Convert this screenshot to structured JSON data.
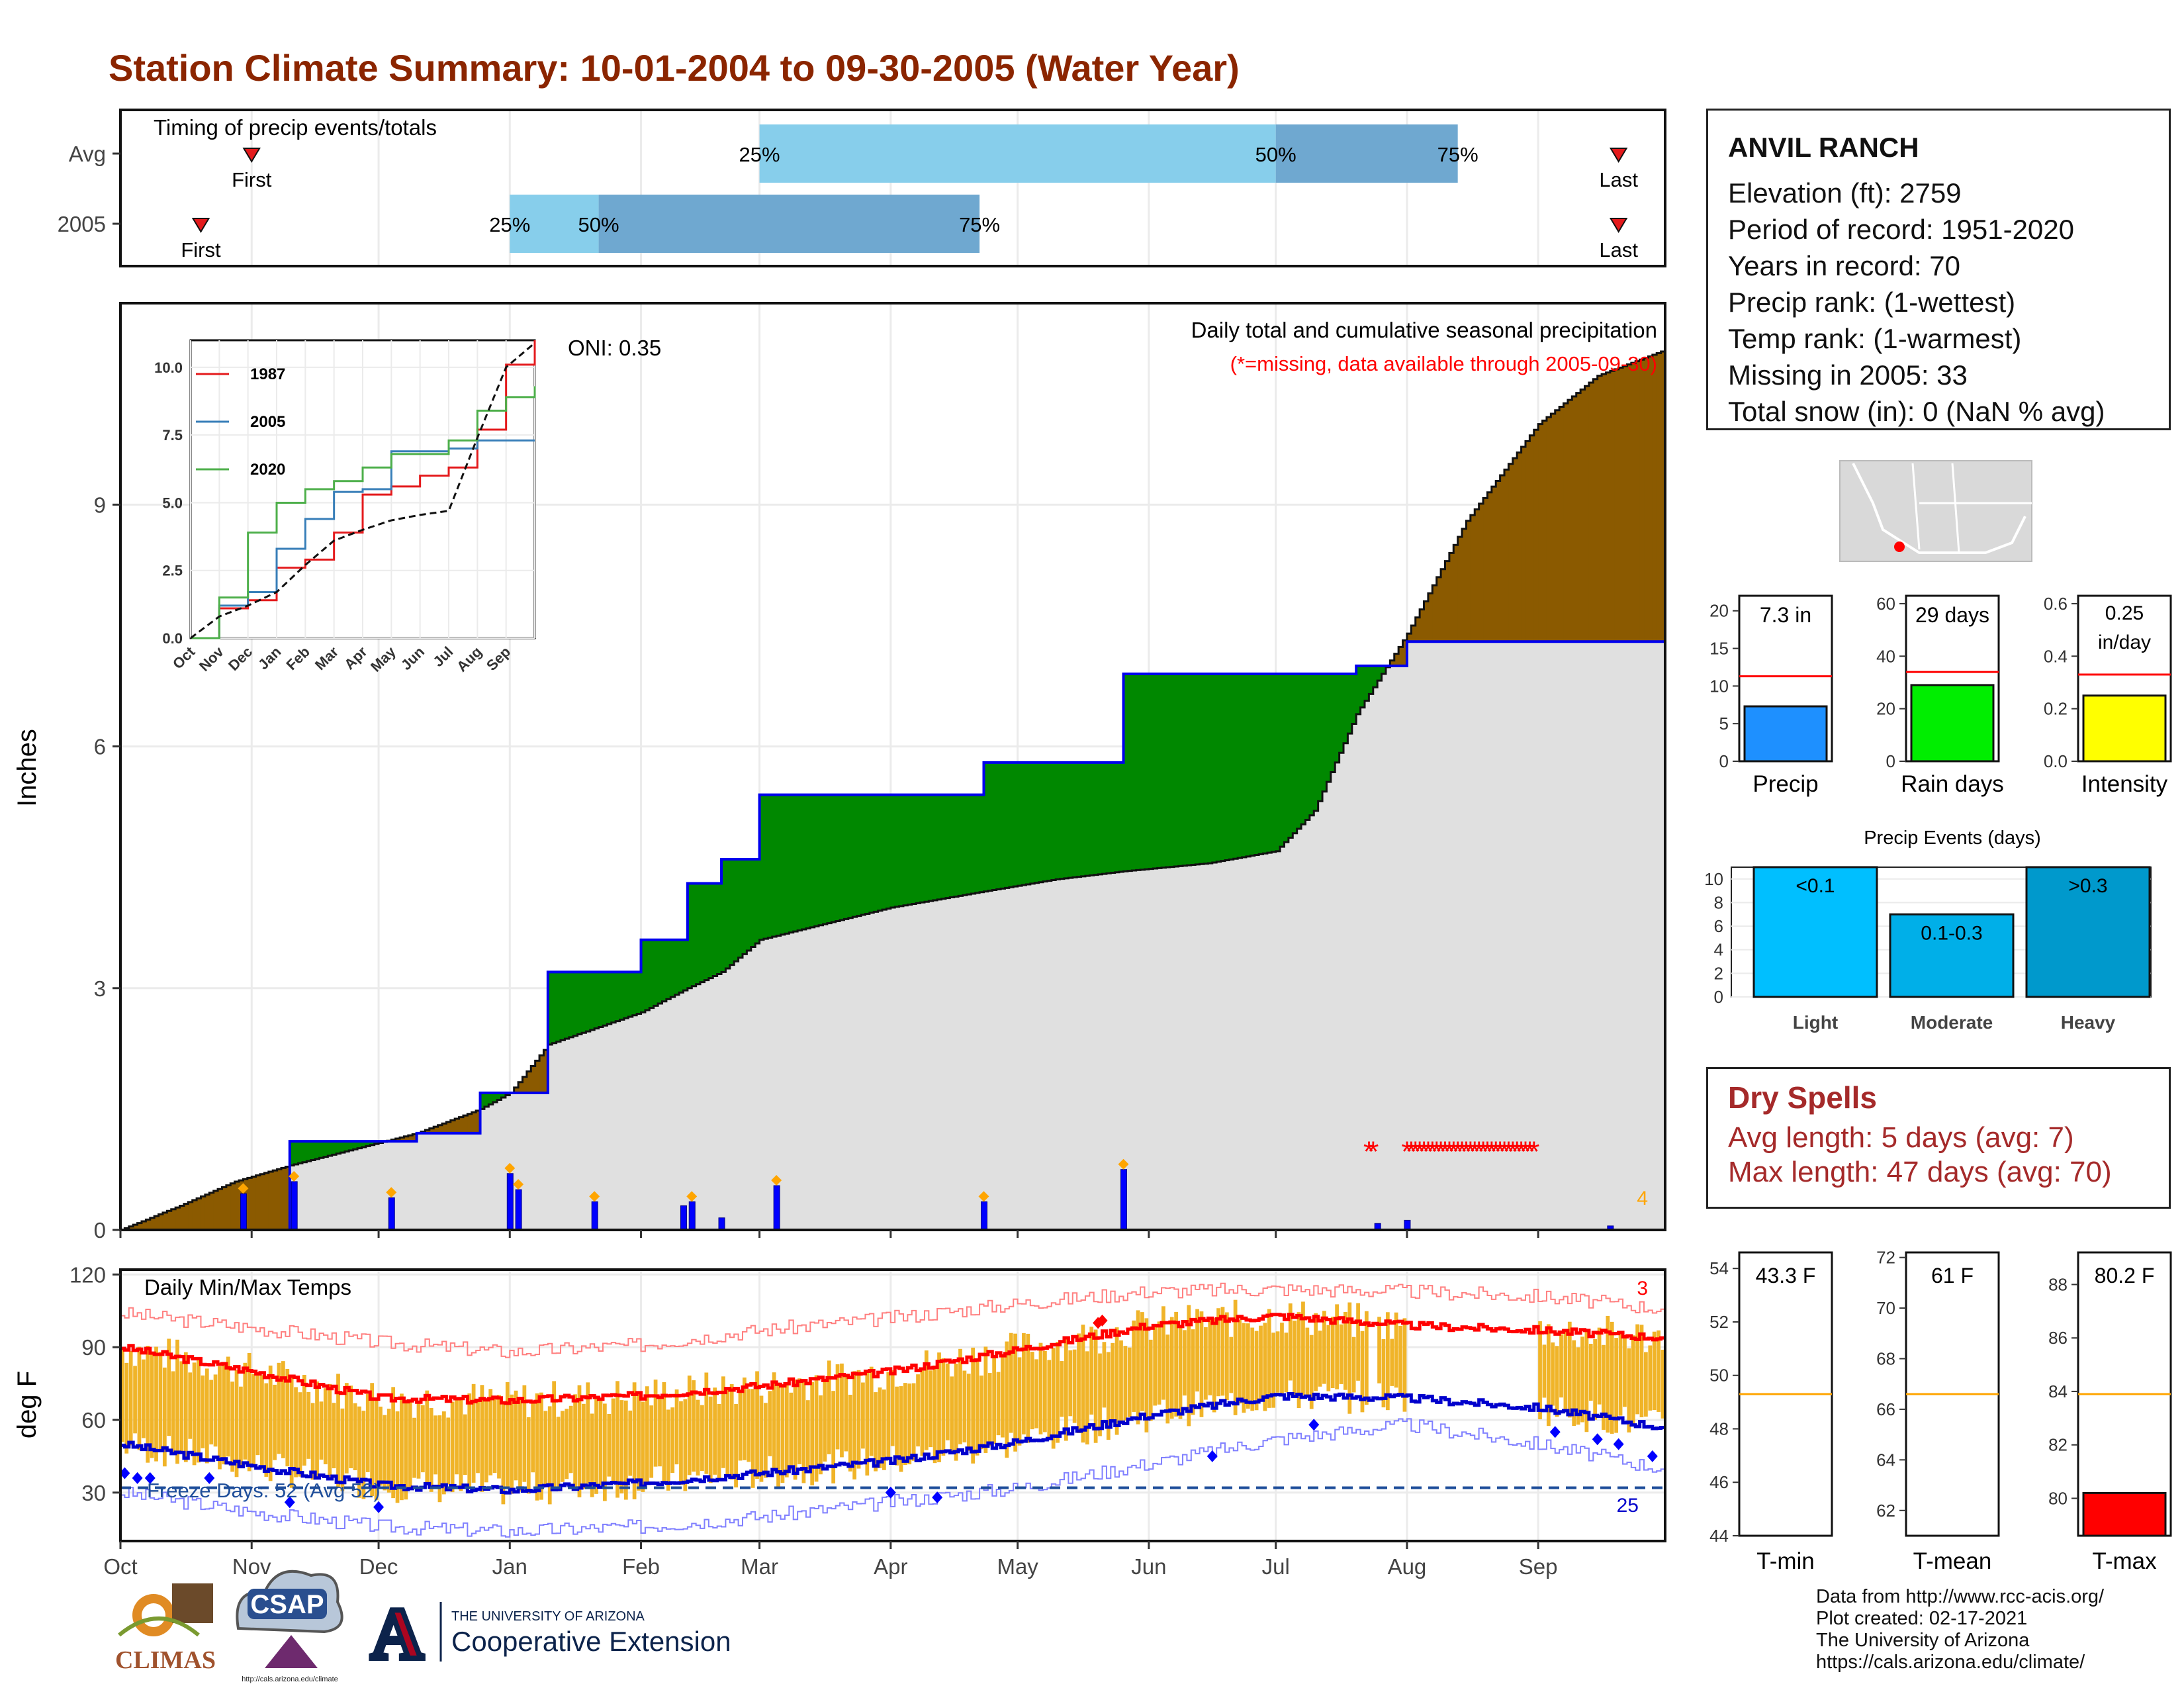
{
  "title": "Station Climate Summary: 10-01-2004 to 09-30-2005 (Water Year)",
  "timing": {
    "label": "Timing of precip events/totals",
    "rows": [
      {
        "name": "Avg",
        "first": "Nov 1",
        "last": "Sep 20",
        "p25": "Mar 1",
        "p50": "Jul 1",
        "p75": "Aug 13"
      },
      {
        "name": "2005",
        "first": "Oct 20",
        "last": "Sep 20",
        "p25": "Jan 1",
        "p50": "Jan 22",
        "p75": "Apr 22"
      }
    ],
    "first_label": "First",
    "last_label": "Last",
    "p25_label": "25%",
    "p50_label": "50%",
    "p75_label": "75%"
  },
  "precip_panel": {
    "ylabel": "Inches",
    "header": "Daily total and cumulative seasonal precipitation",
    "missing_note": "(*=missing, data available through 2005-09-30)",
    "oni": "ONI: 0.35",
    "corner_count": "4",
    "yticks": [
      "0",
      "3",
      "6",
      "9"
    ]
  },
  "inset": {
    "yticks": [
      "0.0",
      "2.5",
      "5.0",
      "7.5",
      "10.0"
    ],
    "xticks": [
      "Oct",
      "Nov",
      "Dec",
      "Jan",
      "Feb",
      "Mar",
      "Apr",
      "May",
      "Jun",
      "Jul",
      "Aug",
      "Sep"
    ],
    "legend": [
      {
        "name": "1987",
        "color": "#e41a1c"
      },
      {
        "name": "2005",
        "color": "#377eb8"
      },
      {
        "name": "2020",
        "color": "#4daf4a"
      }
    ]
  },
  "temp_panel": {
    "ylabel": "deg F",
    "header": "Daily Min/Max Temps",
    "freeze": "Freeze Days: 52 (Avg 52)",
    "count_hi": "3",
    "count_lo": "25",
    "yticks": [
      "30",
      "60",
      "90",
      "120"
    ],
    "months": [
      "Oct",
      "Nov",
      "Dec",
      "Jan",
      "Feb",
      "Mar",
      "Apr",
      "May",
      "Jun",
      "Jul",
      "Aug",
      "Sep"
    ]
  },
  "station": {
    "name": "ANVIL RANCH",
    "lines": [
      "Elevation (ft): 2759",
      "Period of record: 1951-2020",
      "Years in record: 70",
      "Precip rank:  (1-wettest)",
      "Temp rank:  (1-warmest)",
      "Missing in 2005: 33",
      "Total snow (in): 0 (NaN % avg)"
    ]
  },
  "summary_bars": [
    {
      "label": "Precip",
      "value_text": "7.3 in",
      "value": 7.3,
      "avg": 11.3,
      "ymax": 22,
      "ticks": [
        "0",
        "5",
        "10",
        "15",
        "20"
      ],
      "color": "#1e90ff"
    },
    {
      "label": "Rain days",
      "value_text": "29 days",
      "value": 29,
      "avg": 34,
      "ymax": 63,
      "ticks": [
        "0",
        "20",
        "40",
        "60"
      ],
      "color": "#00ee00"
    },
    {
      "label": "Intensity",
      "value_text": "0.25 in/day",
      "value": 0.25,
      "avg": 0.33,
      "ymax": 0.63,
      "ticks": [
        "0.0",
        "0.2",
        "0.4",
        "0.6"
      ],
      "color": "#ffff00"
    }
  ],
  "events": {
    "title": "Precip Events (days)",
    "ticks": [
      "0",
      "2",
      "4",
      "6",
      "8",
      "10"
    ],
    "bars": [
      {
        "label": "Light",
        "tag": "<0.1",
        "value": 11,
        "color": "#00bfff"
      },
      {
        "label": "Moderate",
        "tag": "0.1-0.3",
        "value": 7,
        "color": "#00afe8"
      },
      {
        "label": "Heavy",
        "tag": ">0.3",
        "value": 11,
        "color": "#0099cc"
      }
    ]
  },
  "dry_spells": {
    "title": "Dry Spells",
    "avg": "Avg length: 5 days (avg: 7)",
    "max": "Max length: 47 days (avg: 70)"
  },
  "temp_bars": [
    {
      "label": "T-min",
      "value_text": "43.3 F",
      "value": 43.3,
      "avg": 49.3,
      "ymin": 44,
      "ymax": 54.6,
      "ticks": [
        "44",
        "46",
        "48",
        "50",
        "52",
        "54"
      ],
      "color": "#ff0000"
    },
    {
      "label": "T-mean",
      "value_text": "61 F",
      "value": 61,
      "avg": 66.6,
      "ymin": 61,
      "ymax": 72.2,
      "ticks": [
        "62",
        "64",
        "66",
        "68",
        "70",
        "72"
      ],
      "color": "#ff0000"
    },
    {
      "label": "T-max",
      "value_text": "80.2 F",
      "value": 80.2,
      "avg": 83.9,
      "ymin": 78.6,
      "ymax": 89.2,
      "ticks": [
        "80",
        "82",
        "84",
        "86",
        "88"
      ],
      "color": "#ff0000"
    }
  ],
  "footer": [
    "Data from http://www.rcc-acis.org/",
    "Plot created: 02-17-2021",
    "The University of Arizona",
    "https://cals.arizona.edu/climate/"
  ],
  "logos": {
    "climas": "CLIMAS",
    "csap": "CSAP",
    "csap_url": "http://cals.arizona.edu/climate",
    "ua_line1": "THE UNIVERSITY OF ARIZONA",
    "ua_line2": "Cooperative Extension",
    "ua_mark": "A"
  },
  "chart_data": [
    {
      "type": "line",
      "title": "Daily total and cumulative seasonal precipitation",
      "ylabel": "Inches",
      "ylim": [
        0,
        11.5
      ],
      "x": [
        "Oct 1",
        "Oct 15",
        "Oct 28",
        "Nov 10",
        "Nov 25",
        "Dec 10",
        "Dec 25",
        "Jan 1",
        "Jan 10",
        "Feb 1",
        "Feb 12",
        "Feb 20",
        "Mar 1",
        "Apr 1",
        "Apr 23",
        "May 10",
        "May 26",
        "Jun 15",
        "Jul 1",
        "Jul 10",
        "Jul 20",
        "Aug 1",
        "Aug 15",
        "Sep 1",
        "Sep 15",
        "Sep 30"
      ],
      "series": [
        {
          "name": "2005",
          "values": [
            0,
            0,
            0,
            1.1,
            1.1,
            1.2,
            1.7,
            1.7,
            3.2,
            3.6,
            4.3,
            4.6,
            5.4,
            5.4,
            5.8,
            5.8,
            6.9,
            6.9,
            6.9,
            6.9,
            7.0,
            7.3,
            7.3,
            7.3,
            7.3,
            7.3
          ]
        },
        {
          "name": "Avg",
          "values": [
            0,
            0.3,
            0.6,
            0.8,
            1.0,
            1.2,
            1.5,
            1.7,
            2.3,
            2.7,
            3.0,
            3.2,
            3.6,
            4.0,
            4.2,
            4.35,
            4.45,
            4.55,
            4.7,
            5.2,
            6.4,
            7.4,
            8.8,
            10.0,
            10.6,
            10.9
          ]
        }
      ],
      "daily_precip": [
        {
          "x": "Oct 30",
          "y": 0.45
        },
        {
          "x": "Nov 11",
          "y": 0.6
        },
        {
          "x": "Dec 4",
          "y": 0.4
        },
        {
          "x": "Jan 1",
          "y": 0.7
        },
        {
          "x": "Jan 3",
          "y": 0.5
        },
        {
          "x": "Jan 21",
          "y": 0.35
        },
        {
          "x": "Feb 11",
          "y": 0.3
        },
        {
          "x": "Feb 13",
          "y": 0.35
        },
        {
          "x": "Feb 20",
          "y": 0.15
        },
        {
          "x": "Mar 5",
          "y": 0.55
        },
        {
          "x": "Apr 23",
          "y": 0.35
        },
        {
          "x": "May 26",
          "y": 0.75
        },
        {
          "x": "Jul 25",
          "y": 0.08
        },
        {
          "x": "Aug 1",
          "y": 0.12
        },
        {
          "x": "Sep 18",
          "y": 0.05
        }
      ],
      "missing_days": [
        "Jul 23",
        "Jul 24",
        "Aug 1 - Aug 31"
      ],
      "oni": 0.35
    },
    {
      "type": "line",
      "title": "Daily Min/Max Temps",
      "ylabel": "deg F",
      "ylim": [
        10,
        122
      ],
      "x": [
        "Oct 1",
        "Nov 1",
        "Dec 1",
        "Jan 1",
        "Feb 1",
        "Mar 1",
        "Apr 1",
        "May 1",
        "Jun 1",
        "Jul 1",
        "Aug 1",
        "Sep 1",
        "Sep 30"
      ],
      "series": [
        {
          "name": "Avg max",
          "values": [
            90,
            80,
            69,
            68,
            70,
            74,
            80,
            89,
            99,
            103,
            99,
            97,
            94
          ]
        },
        {
          "name": "Avg min",
          "values": [
            50,
            41,
            33,
            31,
            34,
            38,
            43,
            51,
            62,
            70,
            69,
            65,
            57
          ]
        },
        {
          "name": "Record max",
          "values": [
            104,
            98,
            92,
            88,
            91,
            97,
            102,
            108,
            113,
            114,
            113,
            111,
            106
          ]
        },
        {
          "name": "Record min",
          "values": [
            30,
            22,
            16,
            14,
            16,
            20,
            26,
            32,
            42,
            52,
            58,
            50,
            40
          ]
        }
      ],
      "freeze_line": 32,
      "freeze_days": 52,
      "freeze_days_avg": 52
    },
    {
      "type": "line",
      "title": "",
      "xlabel": "",
      "ylim": [
        0,
        11
      ],
      "x": [
        "Oct",
        "Nov",
        "Dec",
        "Jan",
        "Feb",
        "Mar",
        "Apr",
        "May",
        "Jun",
        "Jul",
        "Aug",
        "Sep",
        "Oct"
      ],
      "series": [
        {
          "name": "1987",
          "values": [
            0,
            1.1,
            1.4,
            2.6,
            2.9,
            3.9,
            5.3,
            5.6,
            6.0,
            6.3,
            7.7,
            10.1,
            11.0
          ]
        },
        {
          "name": "2005",
          "values": [
            0,
            1.2,
            1.7,
            3.3,
            4.4,
            5.4,
            5.5,
            6.9,
            6.9,
            7.0,
            7.3,
            7.3,
            7.3
          ]
        },
        {
          "name": "2020",
          "values": [
            0,
            1.5,
            3.9,
            5.0,
            5.5,
            5.8,
            6.3,
            6.8,
            6.8,
            7.3,
            8.4,
            8.9,
            9.3
          ]
        },
        {
          "name": "Avg",
          "values": [
            0,
            0.8,
            1.2,
            1.7,
            2.7,
            3.6,
            4.0,
            4.35,
            4.55,
            4.7,
            7.4,
            10.0,
            10.9
          ]
        }
      ]
    }
  ]
}
